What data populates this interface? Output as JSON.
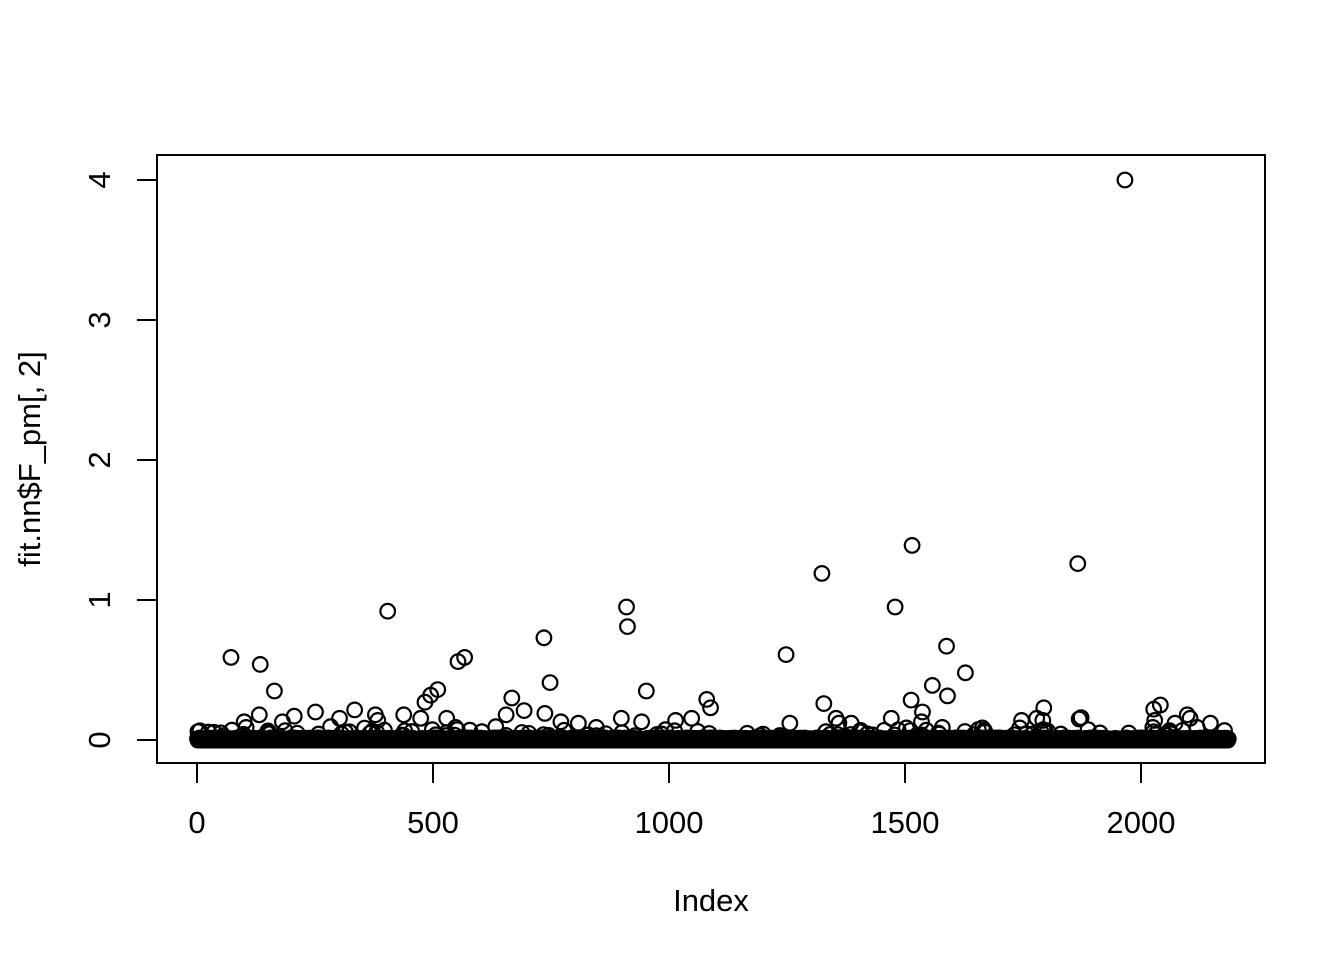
{
  "figure": {
    "background_color": "#ffffff",
    "foreground_color": "#000000"
  },
  "chart_data": {
    "type": "scatter",
    "title": "",
    "xlabel": "Index",
    "ylabel": "fit.nn$F_pm[, 2]",
    "x_tick_labels": [
      "0",
      "500",
      "1000",
      "1500",
      "2000"
    ],
    "x_tick_values": [
      0,
      500,
      1000,
      1500,
      2000
    ],
    "y_tick_labels": [
      "0",
      "1",
      "2",
      "3",
      "4"
    ],
    "y_tick_values": [
      0,
      1,
      2,
      3,
      4
    ],
    "xlim": [
      0,
      2185
    ],
    "ylim": [
      0,
      4
    ],
    "grid": false,
    "legend": null,
    "marker": "open-circle",
    "marker_color": "#000000",
    "total_points_approx": 2185,
    "dense_band": {
      "description": "approximately 2000 overplotted points hugging zero, forming a solid black band",
      "index_range": [
        1,
        2185
      ],
      "value_range": [
        0.0,
        0.05
      ],
      "bump_count": 90,
      "bump_value_range": [
        0.03,
        0.075
      ]
    },
    "points": [
      [
        2,
        0.06
      ],
      [
        36,
        0.055
      ],
      [
        72,
        0.59
      ],
      [
        74,
        0.07
      ],
      [
        100,
        0.13
      ],
      [
        104,
        0.09
      ],
      [
        132,
        0.18
      ],
      [
        134,
        0.54
      ],
      [
        164,
        0.35
      ],
      [
        181,
        0.13
      ],
      [
        206,
        0.17
      ],
      [
        251,
        0.2
      ],
      [
        283,
        0.095
      ],
      [
        302,
        0.155
      ],
      [
        334,
        0.215
      ],
      [
        355,
        0.085
      ],
      [
        378,
        0.18
      ],
      [
        383,
        0.14
      ],
      [
        397,
        0.07
      ],
      [
        404,
        0.92
      ],
      [
        438,
        0.18
      ],
      [
        474,
        0.155
      ],
      [
        483,
        0.27
      ],
      [
        495,
        0.32
      ],
      [
        510,
        0.36
      ],
      [
        529,
        0.155
      ],
      [
        548,
        0.09
      ],
      [
        553,
        0.56
      ],
      [
        567,
        0.59
      ],
      [
        578,
        0.07
      ],
      [
        633,
        0.095
      ],
      [
        655,
        0.18
      ],
      [
        667,
        0.3
      ],
      [
        693,
        0.21
      ],
      [
        735,
        0.73
      ],
      [
        737,
        0.19
      ],
      [
        748,
        0.41
      ],
      [
        771,
        0.13
      ],
      [
        808,
        0.12
      ],
      [
        846,
        0.09
      ],
      [
        899,
        0.155
      ],
      [
        910,
        0.95
      ],
      [
        912,
        0.81
      ],
      [
        942,
        0.13
      ],
      [
        952,
        0.35
      ],
      [
        1014,
        0.14
      ],
      [
        1048,
        0.155
      ],
      [
        1080,
        0.29
      ],
      [
        1088,
        0.23
      ],
      [
        1248,
        0.61
      ],
      [
        1256,
        0.12
      ],
      [
        1324,
        1.19
      ],
      [
        1328,
        0.26
      ],
      [
        1354,
        0.155
      ],
      [
        1360,
        0.12
      ],
      [
        1386,
        0.12
      ],
      [
        1471,
        0.155
      ],
      [
        1479,
        0.95
      ],
      [
        1503,
        0.086
      ],
      [
        1513,
        0.285
      ],
      [
        1515,
        1.39
      ],
      [
        1535,
        0.13
      ],
      [
        1537,
        0.2
      ],
      [
        1545,
        0.07
      ],
      [
        1558,
        0.39
      ],
      [
        1579,
        0.09
      ],
      [
        1588,
        0.67
      ],
      [
        1590,
        0.315
      ],
      [
        1628,
        0.48
      ],
      [
        1664,
        0.086
      ],
      [
        1743,
        0.086
      ],
      [
        1747,
        0.14
      ],
      [
        1779,
        0.155
      ],
      [
        1792,
        0.14
      ],
      [
        1794,
        0.23
      ],
      [
        1866,
        1.26
      ],
      [
        1869,
        0.15
      ],
      [
        1873,
        0.16
      ],
      [
        1966,
        4.0
      ],
      [
        2025,
        0.09
      ],
      [
        2027,
        0.22
      ],
      [
        2029,
        0.14
      ],
      [
        2041,
        0.25
      ],
      [
        2072,
        0.12
      ],
      [
        2098,
        0.18
      ],
      [
        2104,
        0.155
      ],
      [
        2119,
        0.09
      ],
      [
        2147,
        0.12
      ]
    ]
  }
}
